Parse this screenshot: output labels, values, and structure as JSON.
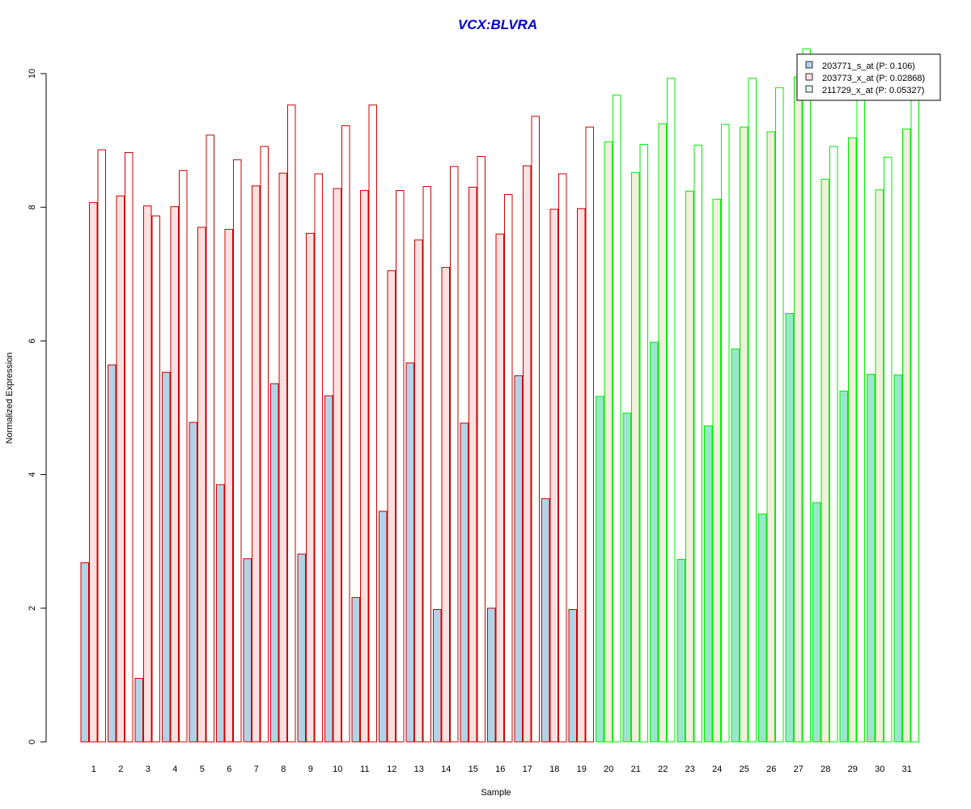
{
  "chart_data": {
    "type": "bar",
    "title": "VCX:BLVRA",
    "xlabel": "Sample",
    "ylabel": "Normalized Expression",
    "ylim": [
      0,
      10
    ],
    "yticks": [
      0,
      2,
      4,
      6,
      8,
      10
    ],
    "grid": false,
    "legend_position": "top-right",
    "categories": [
      "1",
      "2",
      "3",
      "4",
      "5",
      "6",
      "7",
      "8",
      "9",
      "10",
      "11",
      "12",
      "13",
      "14",
      "15",
      "16",
      "17",
      "18",
      "19",
      "20",
      "21",
      "22",
      "23",
      "24",
      "25",
      "26",
      "27",
      "28",
      "29",
      "30",
      "31"
    ],
    "group_split_after": 19,
    "colors": {
      "title": "#0000cc",
      "group1_border": "#cc0000",
      "group2_border": "#00ee00",
      "s1_fill_group1": "#b4d2e6",
      "s1_fill_group2": "#9ae6cc",
      "s2_fill_group1": "#ffe0e0",
      "s2_fill_group2": "#f0f0dc",
      "s3_fill_group1": "#ffffff",
      "s3_fill_group2": "#ffffff",
      "legend_s1": "#b4d2e6",
      "legend_s2": "#ffe0e0",
      "legend_s3": "#e0f4f4"
    },
    "series": [
      {
        "name": "203771_s_at (P: 0.106)",
        "values": [
          2.68,
          5.64,
          0.95,
          5.53,
          4.78,
          3.85,
          2.74,
          5.36,
          2.81,
          5.18,
          2.16,
          3.45,
          5.67,
          1.98,
          4.77,
          2.0,
          5.48,
          3.64,
          1.98,
          5.17,
          4.92,
          5.98,
          2.73,
          4.73,
          5.88,
          3.41,
          6.41,
          3.58,
          5.25,
          5.5,
          5.49
        ]
      },
      {
        "name": "203773_x_at (P: 0.02868)",
        "values": [
          8.07,
          8.17,
          8.02,
          8.01,
          7.7,
          7.67,
          8.32,
          8.51,
          7.61,
          8.28,
          8.25,
          7.05,
          7.51,
          7.1,
          8.3,
          7.6,
          8.62,
          7.97,
          7.98,
          8.98,
          8.52,
          9.25,
          8.24,
          8.12,
          9.2,
          9.13,
          9.95,
          8.42,
          9.04,
          8.26,
          9.17
        ]
      },
      {
        "name": "211729_x_at (P: 0.05327)",
        "values": [
          8.86,
          8.82,
          7.87,
          8.55,
          9.08,
          8.71,
          8.91,
          9.53,
          8.5,
          9.22,
          9.53,
          8.25,
          8.31,
          8.61,
          8.76,
          8.19,
          9.36,
          8.5,
          9.2,
          9.68,
          8.94,
          9.93,
          8.93,
          9.24,
          9.93,
          9.79,
          10.37,
          8.91,
          9.65,
          8.75,
          9.65
        ]
      }
    ]
  }
}
